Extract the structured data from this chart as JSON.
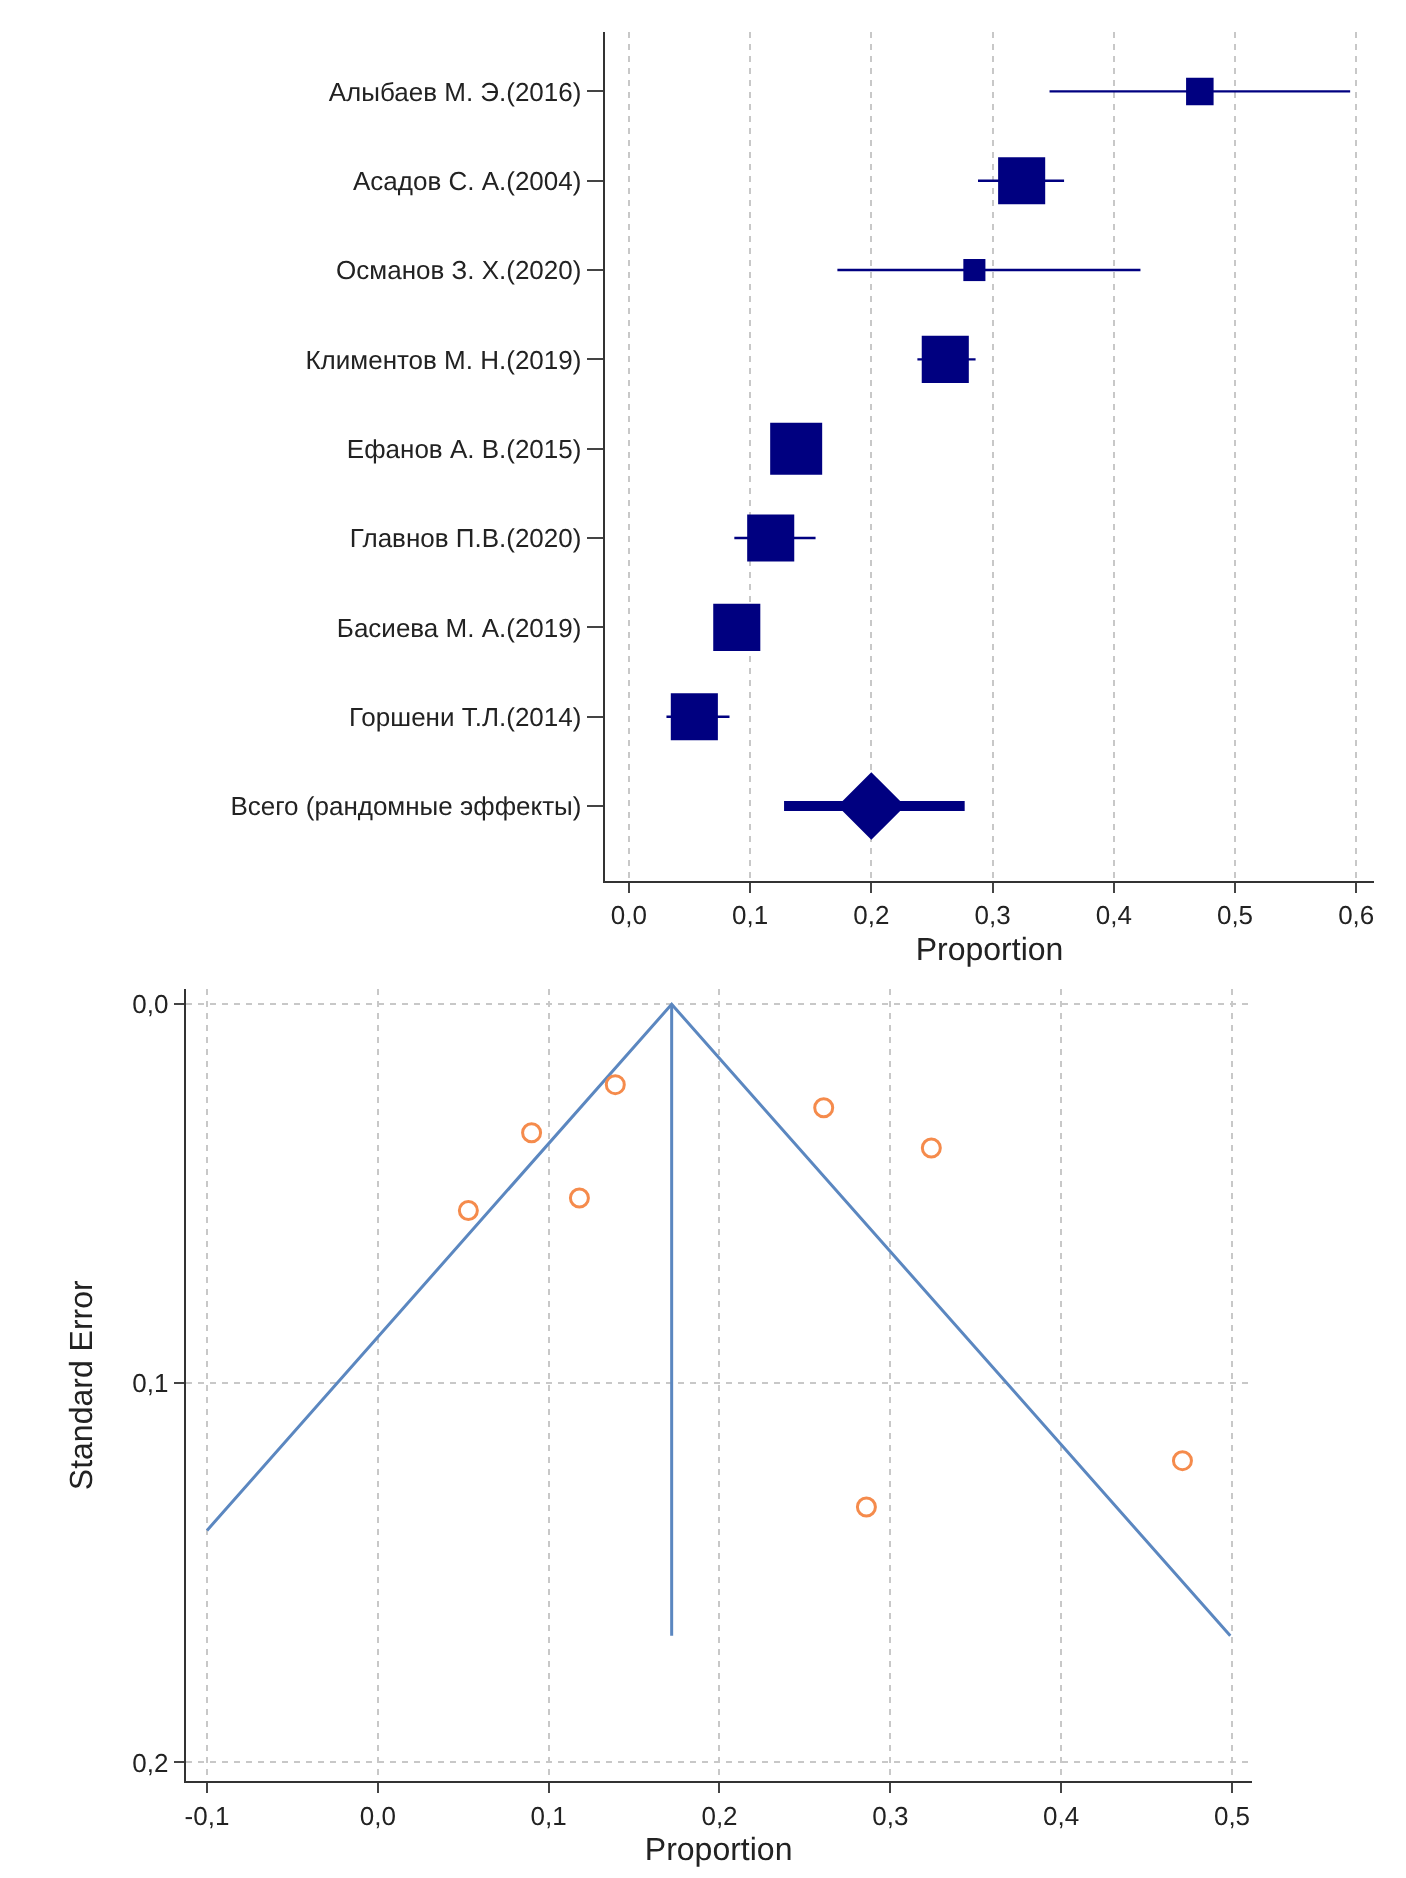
{
  "chart_data": [
    {
      "type": "bubble",
      "orientation": "horizontal",
      "xlabel": "Proportion",
      "categories": [
        "Алыбаев М. Э.(2016)",
        "Асадов С. А.(2004)",
        "Османов З. Х.(2020)",
        "Климентов М. Н.(2019)",
        "Ефанов А. В.(2015)",
        "Главнов П.В.(2020)",
        "Басиева М. А.(2019)",
        "Горшени Т.Л.(2014)",
        "Всего (рандомные эффекты)"
      ],
      "xlim": [
        -0.02,
        0.615
      ],
      "xticks": [
        {
          "value": 0,
          "label": "0,0"
        },
        {
          "value": 0.1,
          "label": "0,1"
        },
        {
          "value": 0.2,
          "label": "0,2"
        },
        {
          "value": 0.3,
          "label": "0,3"
        },
        {
          "value": 0.4,
          "label": "0,4"
        },
        {
          "value": 0.5,
          "label": "0,5"
        },
        {
          "value": 0.6,
          "label": "0,6"
        }
      ],
      "grid": "x",
      "series": [
        {
          "color": "#000080",
          "marker": "square",
          "values": [
            0.471,
            0.324,
            0.285,
            0.261,
            0.138,
            0.117,
            0.089,
            0.054,
            null
          ],
          "sizes": [
            0.28,
            0.82,
            0.18,
            0.82,
            1,
            0.82,
            0.82,
            0.82,
            null
          ],
          "errors": [
            [
              0.347,
              0.595
            ],
            [
              0.288,
              0.359
            ],
            [
              0.172,
              0.422
            ],
            [
              0.238,
              0.286
            ],
            [
              0.122,
              0.155
            ],
            [
              0.087,
              0.154
            ],
            [
              0.071,
              0.108
            ],
            [
              0.031,
              0.083
            ],
            null
          ]
        },
        {
          "color": "#000080",
          "marker": "diamond",
          "values": [
            null,
            null,
            null,
            null,
            null,
            null,
            null,
            null,
            0.2
          ],
          "errors": [
            null,
            null,
            null,
            null,
            null,
            null,
            null,
            null,
            [
              0.128,
              0.277
            ]
          ]
        }
      ]
    },
    {
      "type": "scatter",
      "xlabel": "Proportion",
      "ylabel": "Standard Error",
      "xlim": [
        -0.1125,
        0.5115
      ],
      "xticks": [
        {
          "value": -0.1,
          "label": "-0,1"
        },
        {
          "value": 0,
          "label": "0,0"
        },
        {
          "value": 0.1,
          "label": "0,1"
        },
        {
          "value": 0.2,
          "label": "0,2"
        },
        {
          "value": 0.3,
          "label": "0,3"
        },
        {
          "value": 0.4,
          "label": "0,4"
        },
        {
          "value": 0.5,
          "label": "0,5"
        }
      ],
      "ylim": [
        0.205,
        -0.004
      ],
      "yticks": [
        {
          "value": 0,
          "label": "0,0"
        },
        {
          "value": 0.1,
          "label": "0,1"
        },
        {
          "value": 0.2,
          "label": "0,2"
        }
      ],
      "grid": true,
      "series": [
        {
          "type": "line",
          "color": "#5b87c0",
          "marker": "none",
          "x": [
            -0.1,
            0.172,
            0.499
          ],
          "values": [
            0.1388,
            0,
            0.1666
          ]
        },
        {
          "type": "line",
          "color": "#5b87c0",
          "marker": "none",
          "x": [
            0.172,
            0.172
          ],
          "values": [
            0,
            0.1666
          ]
        },
        {
          "type": "scatter",
          "color": "#f58b4c",
          "marker": "circle",
          "x": [
            0.139,
            0.09,
            0.118,
            0.053,
            0.261,
            0.324,
            0.286,
            0.471
          ],
          "values": [
            0.0212,
            0.0339,
            0.0511,
            0.0544,
            0.0273,
            0.0379,
            0.1326,
            0.1204
          ]
        }
      ]
    }
  ]
}
